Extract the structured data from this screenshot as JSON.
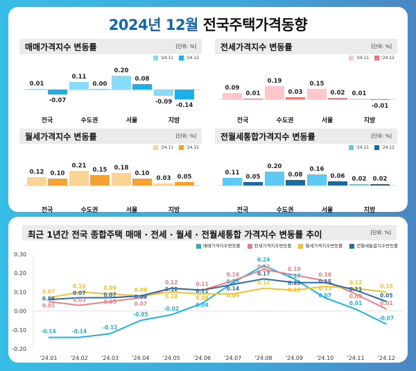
{
  "title": {
    "year_month": "2024년 12월",
    "rest": "전국주택가격동향"
  },
  "unit_label": "[단위: %]",
  "period_labels": [
    "'24.11",
    "'24.12"
  ],
  "chart_data": [
    {
      "type": "bar",
      "title": "매매가격지수 변동률",
      "categories": [
        "전국",
        "수도권",
        "서울",
        "지방"
      ],
      "series": [
        {
          "name": "'24.11",
          "values": [
            0.01,
            0.11,
            0.2,
            -0.09
          ],
          "color": "#86dcf8"
        },
        {
          "name": "'24.12",
          "values": [
            -0.07,
            0.0,
            0.08,
            -0.14
          ],
          "color": "#1bb0e8"
        }
      ]
    },
    {
      "type": "bar",
      "title": "전세가격지수 변동률",
      "categories": [
        "전국",
        "수도권",
        "서울",
        "지방"
      ],
      "series": [
        {
          "name": "'24.11",
          "values": [
            0.09,
            0.19,
            0.15,
            0.01
          ],
          "color": "#fcc6ca"
        },
        {
          "name": "'24.12",
          "values": [
            0.01,
            0.03,
            0.02,
            -0.01
          ],
          "color": "#f07478"
        }
      ]
    },
    {
      "type": "bar",
      "title": "월세가격지수 변동률",
      "categories": [
        "전국",
        "수도권",
        "서울",
        "지방"
      ],
      "series": [
        {
          "name": "'24.11",
          "values": [
            0.12,
            0.21,
            0.18,
            0.03
          ],
          "color": "#fbd394"
        },
        {
          "name": "'24.12",
          "values": [
            0.1,
            0.15,
            0.1,
            0.05
          ],
          "color": "#f5a232"
        }
      ]
    },
    {
      "type": "bar",
      "title": "전월세통합가격지수 변동률",
      "categories": [
        "전국",
        "수도권",
        "서울",
        "지방"
      ],
      "series": [
        {
          "name": "'24.11",
          "values": [
            0.11,
            0.2,
            0.16,
            0.02
          ],
          "color": "#5ccaf2"
        },
        {
          "name": "'24.12",
          "values": [
            0.05,
            0.08,
            0.06,
            0.02
          ],
          "color": "#1a6aa2"
        }
      ]
    },
    {
      "type": "line",
      "title": "최근 1년간 전국 종합주택 매매 · 전세 · 월세 · 전월세통합 가격지수 변동률 추이",
      "categories": [
        "'24.01",
        "'24.02",
        "'24.03",
        "'24.04",
        "'24.05",
        "'24.06",
        "'24.07",
        "'24.08",
        "'24.09",
        "'24.10",
        "'24.11",
        "'24.12"
      ],
      "ylim": [
        -0.2,
        0.3
      ],
      "yticks": [
        "0.30",
        "0.20",
        "0.10",
        "0.00",
        "-0.10",
        "-0.20"
      ],
      "legend": "top-right",
      "series": [
        {
          "name": "매매가격지수변동률",
          "color": "#1ab0e8",
          "values": [
            -0.14,
            -0.14,
            -0.12,
            -0.05,
            -0.02,
            0.04,
            0.15,
            0.24,
            0.17,
            0.07,
            0.01,
            -0.07
          ]
        },
        {
          "name": "전세가격지수변동률",
          "color": "#f47c80",
          "values": [
            0.05,
            0.03,
            0.05,
            0.07,
            0.12,
            0.11,
            0.16,
            0.22,
            0.19,
            0.16,
            0.09,
            0.01
          ]
        },
        {
          "name": "월세가격지수변동률",
          "color": "#f5c020",
          "values": [
            0.07,
            0.1,
            0.09,
            0.08,
            0.1,
            0.09,
            0.09,
            0.12,
            0.11,
            0.13,
            0.12,
            0.1
          ]
        },
        {
          "name": "전월세통합지수변동률",
          "color": "#2a6aa8",
          "values": [
            0.06,
            0.07,
            0.07,
            0.08,
            0.12,
            0.11,
            0.14,
            0.17,
            0.15,
            0.15,
            0.11,
            0.05
          ]
        }
      ]
    }
  ]
}
